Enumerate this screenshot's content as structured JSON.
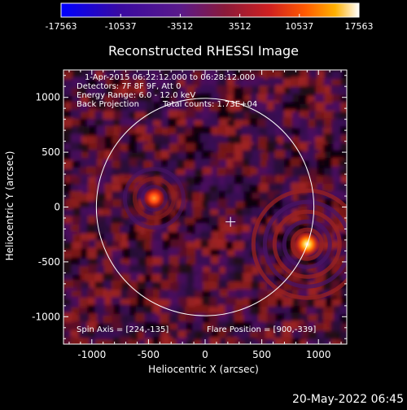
{
  "chart_data": {
    "type": "heatmap",
    "title": "Reconstructed RHESSI Image",
    "xlabel": "Heliocentric X (arcsec)",
    "ylabel": "Heliocentric Y (arcsec)",
    "xlim": [
      -1250,
      1250
    ],
    "ylim": [
      -1250,
      1250
    ],
    "xticks": [
      -1000,
      -500,
      0,
      500,
      1000
    ],
    "yticks": [
      -1000,
      -500,
      0,
      500,
      1000
    ],
    "xtick_labels": [
      "-1000",
      "-500",
      "0",
      "500",
      "1000"
    ],
    "ytick_labels": [
      "-1000",
      "-500",
      "0",
      "500",
      "1000"
    ],
    "colorbar": {
      "min": -17563,
      "max": 17563,
      "tick_values": [
        -17563,
        -10537,
        -3512,
        3512,
        10537,
        17563
      ],
      "tick_labels": [
        "-17563",
        "-10537",
        "-3512",
        "3512",
        "10537",
        "17563"
      ],
      "colormap": [
        "#0000ff",
        "#3a0aa0",
        "#5a1a8a",
        "#8a1a3a",
        "#d02020",
        "#ff5a00",
        "#ffb000",
        "#ffffff"
      ]
    },
    "annotations": {
      "time_range": "1-Apr-2015 06:22:12.000 to 06:28:12.000",
      "detectors": "Detectors: 7F 8F 9F, Att 0",
      "energy": "Energy Range: 6.0 - 12.0 keV",
      "method": "Back Projection",
      "counts": "Total counts: 1.73E+04",
      "spin_axis": "Spin Axis = [224,-135]",
      "flare_position": "Flare Position = [900,-339]"
    },
    "solar_limb": {
      "center": [
        0,
        0
      ],
      "radius_arcsec": 960
    },
    "spin_axis_marker": [
      224,
      -135
    ],
    "sources": [
      {
        "x": 900,
        "y": -339,
        "peak_fraction": 1.0
      },
      {
        "x": -450,
        "y": 80,
        "peak_fraction": 0.55
      }
    ],
    "footer_date": "20-May-2022 06:45"
  }
}
